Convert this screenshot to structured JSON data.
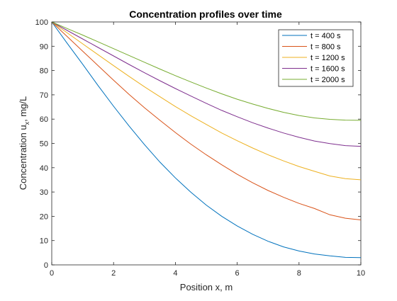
{
  "chart_data": {
    "type": "line",
    "title": "Concentration profiles over time",
    "xlabel": "Position x, m",
    "ylabel": "Concentration  u",
    "ylabel_sub": "x",
    "ylabel_unit": ",  mg/L",
    "xlim": [
      0,
      10
    ],
    "ylim": [
      0,
      100
    ],
    "xticks": [
      0,
      2,
      4,
      6,
      8,
      10
    ],
    "yticks": [
      0,
      10,
      20,
      30,
      40,
      50,
      60,
      70,
      80,
      90,
      100
    ],
    "grid": false,
    "legend_position": "top-right",
    "x": [
      0,
      0.5,
      1,
      1.5,
      2,
      2.5,
      3,
      3.5,
      4,
      4.5,
      5,
      5.5,
      6,
      6.5,
      7,
      7.5,
      8,
      8.5,
      9,
      9.5,
      10
    ],
    "series": [
      {
        "name": "t = 400 s",
        "color": "#0072BD",
        "values": [
          100,
          91.2,
          82.6,
          73.8,
          65.3,
          57.2,
          49.5,
          42.3,
          35.8,
          29.9,
          24.6,
          20.0,
          16.0,
          12.6,
          9.7,
          7.4,
          5.7,
          4.5,
          3.7,
          3.1,
          3.0
        ]
      },
      {
        "name": "t = 800 s",
        "color": "#D95319",
        "values": [
          100,
          94.0,
          88.0,
          82.0,
          76.0,
          70.2,
          64.7,
          59.5,
          54.5,
          49.7,
          45.3,
          41.2,
          37.3,
          33.8,
          30.6,
          27.8,
          25.3,
          23.2,
          20.6,
          19.2,
          18.5
        ]
      },
      {
        "name": "t = 1200 s",
        "color": "#EDB120",
        "values": [
          100,
          95.5,
          91.0,
          86.5,
          82.0,
          77.6,
          73.3,
          69.2,
          65.2,
          61.4,
          57.8,
          54.3,
          51.1,
          48.1,
          45.3,
          42.8,
          40.5,
          38.5,
          36.6,
          35.5,
          35.0
        ]
      },
      {
        "name": "t = 1600 s",
        "color": "#7E2F8E",
        "values": [
          100,
          96.5,
          93.0,
          89.5,
          86.0,
          82.5,
          79.1,
          75.8,
          72.6,
          69.5,
          66.5,
          63.6,
          61.0,
          58.5,
          56.3,
          54.3,
          52.5,
          51.0,
          49.9,
          49.1,
          48.8
        ]
      },
      {
        "name": "t = 2000 s",
        "color": "#77AC30",
        "values": [
          100,
          97.3,
          94.6,
          91.8,
          89.0,
          86.2,
          83.4,
          80.6,
          77.9,
          75.3,
          72.8,
          70.4,
          68.2,
          66.2,
          64.4,
          62.8,
          61.5,
          60.5,
          59.9,
          59.6,
          59.5
        ]
      }
    ]
  }
}
